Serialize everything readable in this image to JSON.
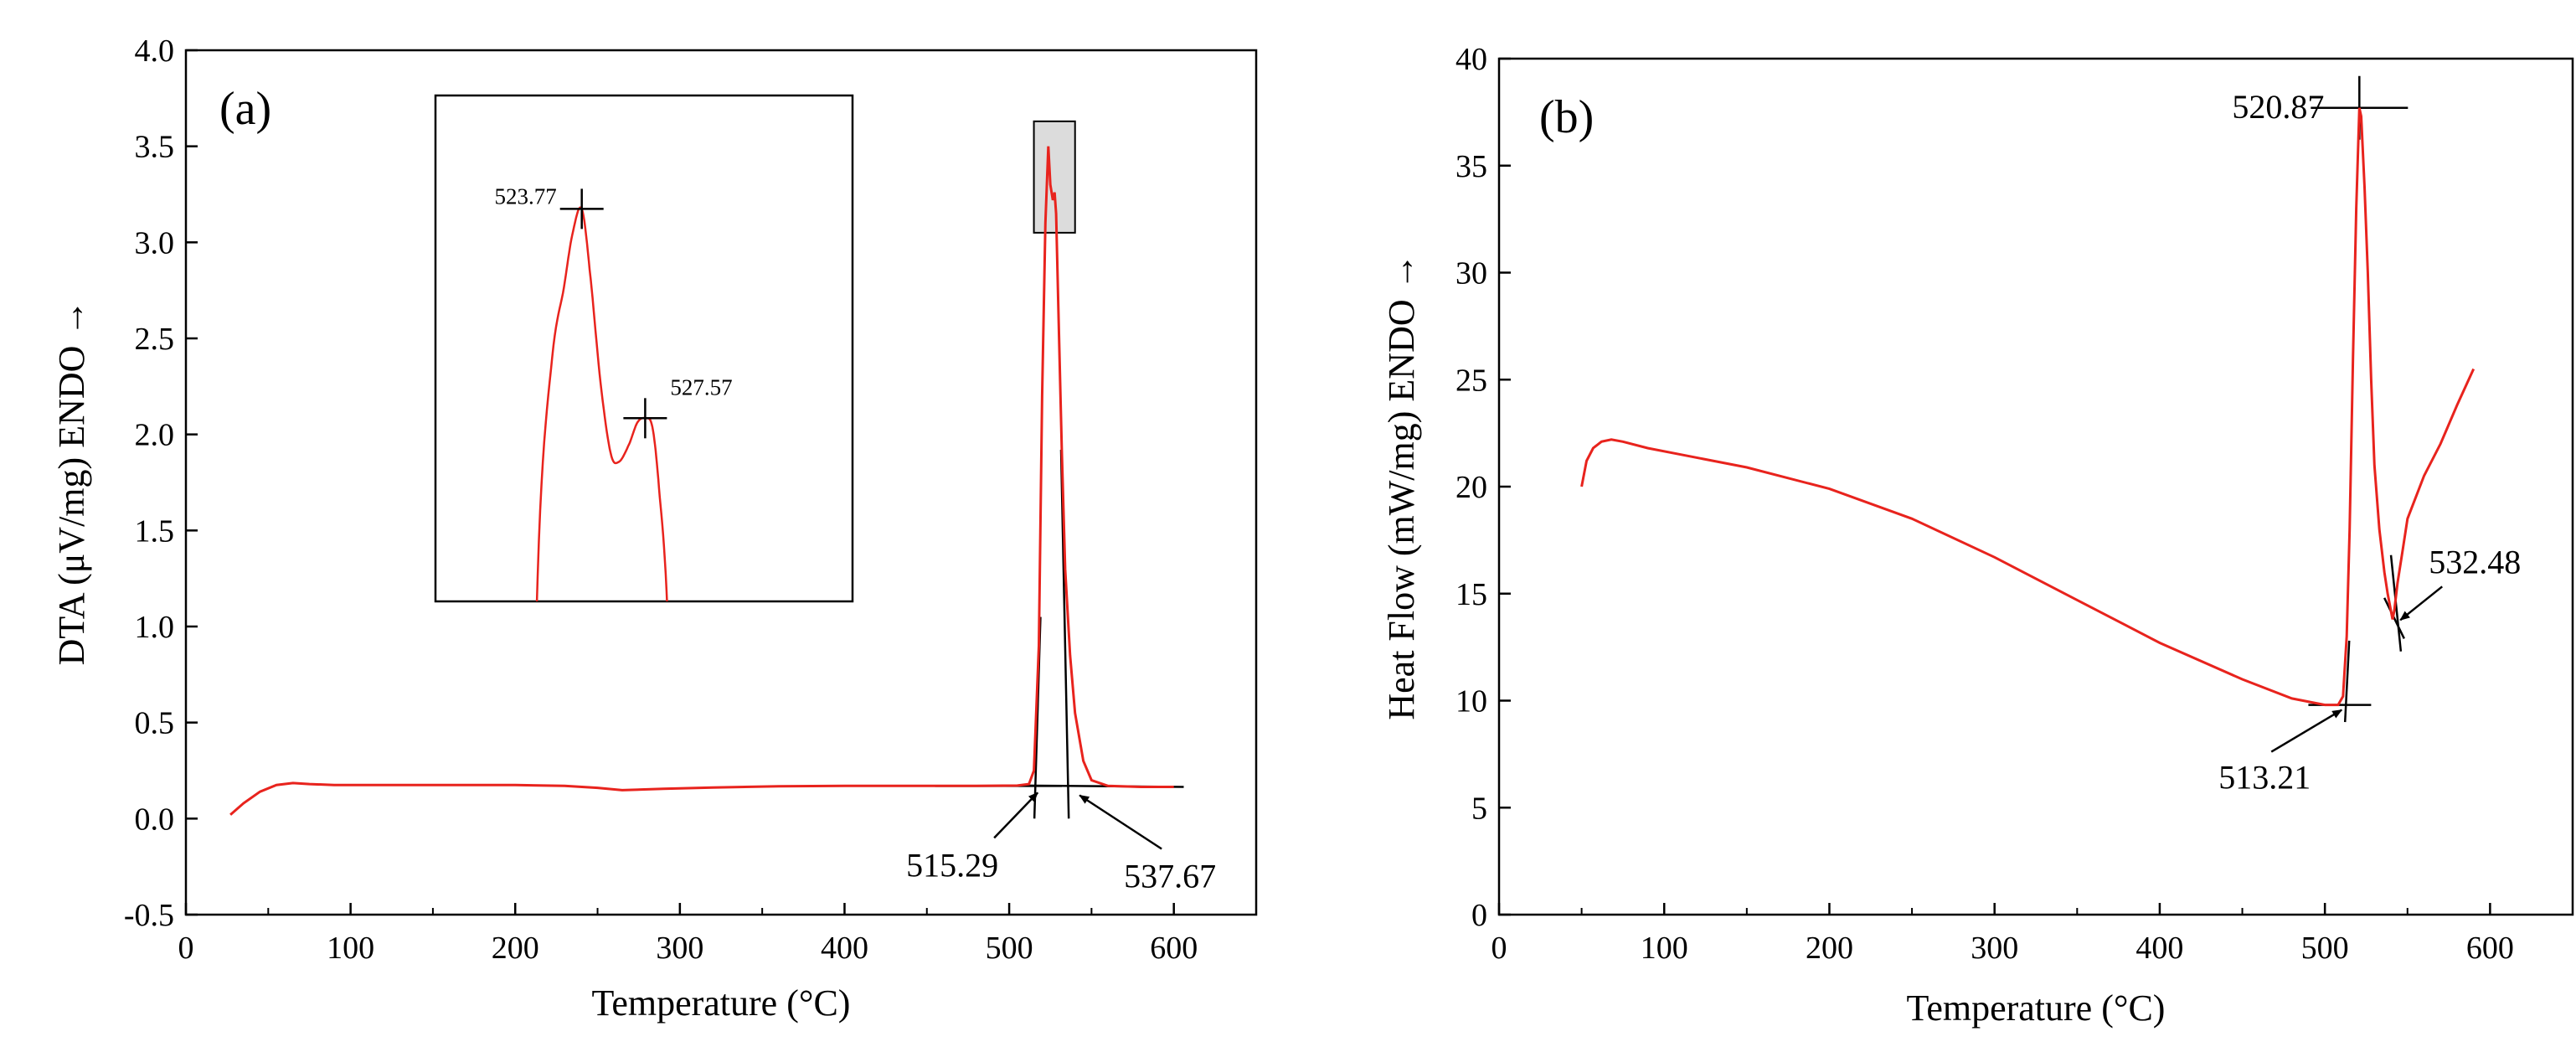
{
  "chart_data": [
    {
      "panel": "(a)",
      "type": "line",
      "xlabel": "Temperature (°C)",
      "ylabel": "DTA (μV/mg)  ENDO →",
      "xlim": [
        0,
        650
      ],
      "ylim": [
        -0.5,
        4.0
      ],
      "xticks": [
        0,
        100,
        200,
        300,
        400,
        500,
        600
      ],
      "yticks": [
        -0.5,
        0.0,
        0.5,
        1.0,
        1.5,
        2.0,
        2.5,
        3.0,
        3.5,
        4.0
      ],
      "ytick_labels": [
        "-0.5",
        "0.0",
        "0.5",
        "1.0",
        "1.5",
        "2.0",
        "2.5",
        "3.0",
        "3.5",
        "4.0"
      ],
      "grid": false,
      "series": [
        {
          "name": "DTA",
          "color": "#e8231d",
          "x": [
            27,
            35,
            45,
            55,
            65,
            75,
            90,
            110,
            150,
            200,
            230,
            250,
            265,
            290,
            320,
            360,
            400,
            440,
            480,
            505,
            512,
            515,
            518,
            520,
            522,
            523.77,
            525,
            526.5,
            527.57,
            528.5,
            530,
            532,
            534,
            537,
            540,
            545,
            550,
            560,
            580,
            600
          ],
          "values": [
            0.02,
            0.08,
            0.14,
            0.175,
            0.185,
            0.18,
            0.175,
            0.175,
            0.175,
            0.175,
            0.17,
            0.16,
            0.148,
            0.155,
            0.162,
            0.168,
            0.17,
            0.17,
            0.17,
            0.172,
            0.18,
            0.25,
            0.9,
            2.2,
            3.1,
            3.5,
            3.3,
            3.22,
            3.26,
            3.15,
            2.6,
            1.9,
            1.3,
            0.85,
            0.55,
            0.3,
            0.2,
            0.17,
            0.165,
            0.165
          ]
        }
      ],
      "annotations": [
        {
          "label": "515.29",
          "x": 515.29,
          "y": 0.17
        },
        {
          "label": "537.67",
          "x": 537.67,
          "y": 0.165
        }
      ],
      "inset": {
        "source_region": {
          "x": [
            515,
            540
          ],
          "y": [
            3.05,
            3.63
          ]
        },
        "peaks": [
          {
            "label": "523.77",
            "x": 523.77,
            "y": 3.5
          },
          {
            "label": "527.57",
            "x": 527.57,
            "y": 3.26
          }
        ]
      }
    },
    {
      "panel": "(b)",
      "type": "line",
      "xlabel": "Temperature (°C)",
      "ylabel": "Heat Flow (mW/mg)  ENDO →",
      "xlim": [
        0,
        650
      ],
      "ylim": [
        0,
        40
      ],
      "xticks": [
        0,
        100,
        200,
        300,
        400,
        500,
        600
      ],
      "yticks": [
        0,
        5,
        10,
        15,
        20,
        25,
        30,
        35,
        40
      ],
      "ytick_labels": [
        "0",
        "5",
        "10",
        "15",
        "20",
        "25",
        "30",
        "35",
        "40"
      ],
      "grid": false,
      "series": [
        {
          "name": "Heat Flow",
          "color": "#e8231d",
          "x": [
            50,
            53,
            57,
            62,
            68,
            75,
            90,
            110,
            150,
            200,
            250,
            300,
            350,
            400,
            450,
            480,
            500,
            508,
            511,
            513.21,
            515,
            517,
            519,
            520.87,
            522,
            524,
            526,
            528,
            530,
            533,
            536,
            538,
            540,
            541,
            542,
            544,
            547,
            550,
            560,
            570,
            580,
            590
          ],
          "values": [
            20.0,
            21.2,
            21.8,
            22.1,
            22.2,
            22.1,
            21.8,
            21.5,
            20.9,
            19.9,
            18.5,
            16.7,
            14.7,
            12.7,
            11.0,
            10.1,
            9.8,
            9.8,
            10.2,
            13,
            18,
            26,
            33,
            37.7,
            37.3,
            34,
            30,
            25,
            21,
            18,
            16,
            15,
            14.2,
            13.8,
            14.2,
            15.5,
            17,
            18.5,
            20.5,
            22,
            23.8,
            25.5
          ]
        }
      ],
      "annotations": [
        {
          "label": "520.87",
          "x": 520.87,
          "y": 37.7
        },
        {
          "label": "513.21",
          "x": 513.21,
          "y": 9.8
        },
        {
          "label": "532.48",
          "x": 532.48,
          "y": 14.0
        }
      ]
    }
  ]
}
